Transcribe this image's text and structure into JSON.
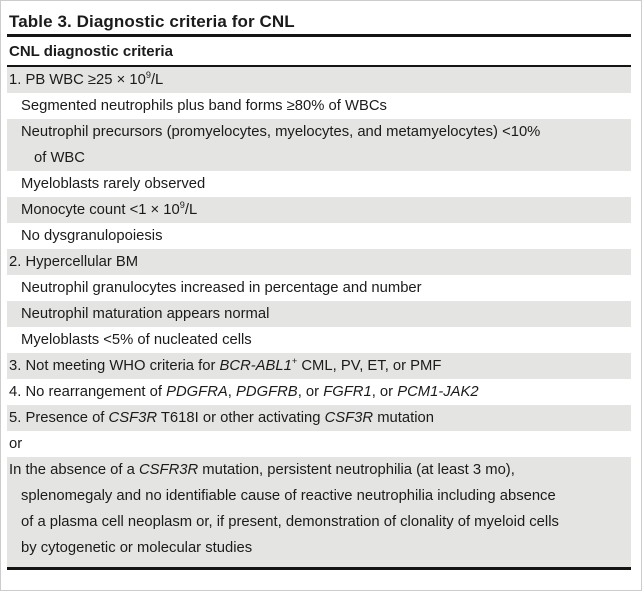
{
  "title": "Table 3. Diagnostic criteria for CNL",
  "column_header": "CNL diagnostic criteria",
  "colors": {
    "row_shade": "#e4e4e2",
    "rule": "#141414",
    "text": "#1b1b1b",
    "page_border": "#cccccc"
  },
  "rows": [
    {
      "shaded": true,
      "indent": 0,
      "segments": [
        {
          "text": "1. PB WBC ≥25 × 10"
        },
        {
          "text": "9",
          "sup": true
        },
        {
          "text": "/L"
        }
      ]
    },
    {
      "shaded": false,
      "indent": 1,
      "segments": [
        {
          "text": "Segmented neutrophils plus band forms ≥80% of WBCs"
        }
      ]
    },
    {
      "shaded": true,
      "indent": 1,
      "segments": [
        {
          "text": "Neutrophil precursors (promyelocytes, myelocytes, and metamyelocytes) <10%"
        },
        {
          "break": true
        },
        {
          "text": "of WBC"
        }
      ]
    },
    {
      "shaded": false,
      "indent": 1,
      "segments": [
        {
          "text": "Myeloblasts rarely observed"
        }
      ]
    },
    {
      "shaded": true,
      "indent": 1,
      "segments": [
        {
          "text": "Monocyte count <1 × 10"
        },
        {
          "text": "9",
          "sup": true
        },
        {
          "text": "/L"
        }
      ]
    },
    {
      "shaded": false,
      "indent": 1,
      "segments": [
        {
          "text": "No dysgranulopoiesis"
        }
      ]
    },
    {
      "shaded": true,
      "indent": 0,
      "segments": [
        {
          "text": "2. Hypercellular BM"
        }
      ]
    },
    {
      "shaded": false,
      "indent": 1,
      "segments": [
        {
          "text": "Neutrophil granulocytes increased in percentage and number"
        }
      ]
    },
    {
      "shaded": true,
      "indent": 1,
      "segments": [
        {
          "text": "Neutrophil maturation appears normal"
        }
      ]
    },
    {
      "shaded": false,
      "indent": 1,
      "segments": [
        {
          "text": "Myeloblasts <5% of nucleated cells"
        }
      ]
    },
    {
      "shaded": true,
      "indent": 0,
      "segments": [
        {
          "text": "3. Not meeting WHO criteria for "
        },
        {
          "text": "BCR-ABL1",
          "italic": true
        },
        {
          "text": "+",
          "sup": true
        },
        {
          "text": " CML, PV, ET, or PMF"
        }
      ]
    },
    {
      "shaded": false,
      "indent": 0,
      "segments": [
        {
          "text": "4. No rearrangement of "
        },
        {
          "text": "PDGFRA",
          "italic": true
        },
        {
          "text": ", "
        },
        {
          "text": "PDGFRB",
          "italic": true
        },
        {
          "text": ", or "
        },
        {
          "text": "FGFR1",
          "italic": true
        },
        {
          "text": ", or "
        },
        {
          "text": "PCM1-JAK2",
          "italic": true
        }
      ]
    },
    {
      "shaded": true,
      "indent": 0,
      "segments": [
        {
          "text": "5. Presence of "
        },
        {
          "text": "CSF3R",
          "italic": true
        },
        {
          "text": " T618I or other activating "
        },
        {
          "text": "CSF3R",
          "italic": true
        },
        {
          "text": " mutation"
        }
      ]
    },
    {
      "shaded": false,
      "indent": 0,
      "segments": [
        {
          "text": "or"
        }
      ]
    },
    {
      "shaded": true,
      "indent": 0,
      "segments": [
        {
          "text": "In the absence of a "
        },
        {
          "text": "CSFR3R",
          "italic": true
        },
        {
          "text": " mutation, persistent neutrophilia (at least 3 mo),"
        },
        {
          "break": true
        },
        {
          "text": "splenomegaly and no identifiable cause of reactive neutrophilia including absence"
        },
        {
          "break": true
        },
        {
          "text": "of a plasma cell neoplasm or, if present, demonstration of clonality of myeloid cells"
        },
        {
          "break": true
        },
        {
          "text": "by cytogenetic or molecular studies"
        }
      ]
    }
  ]
}
